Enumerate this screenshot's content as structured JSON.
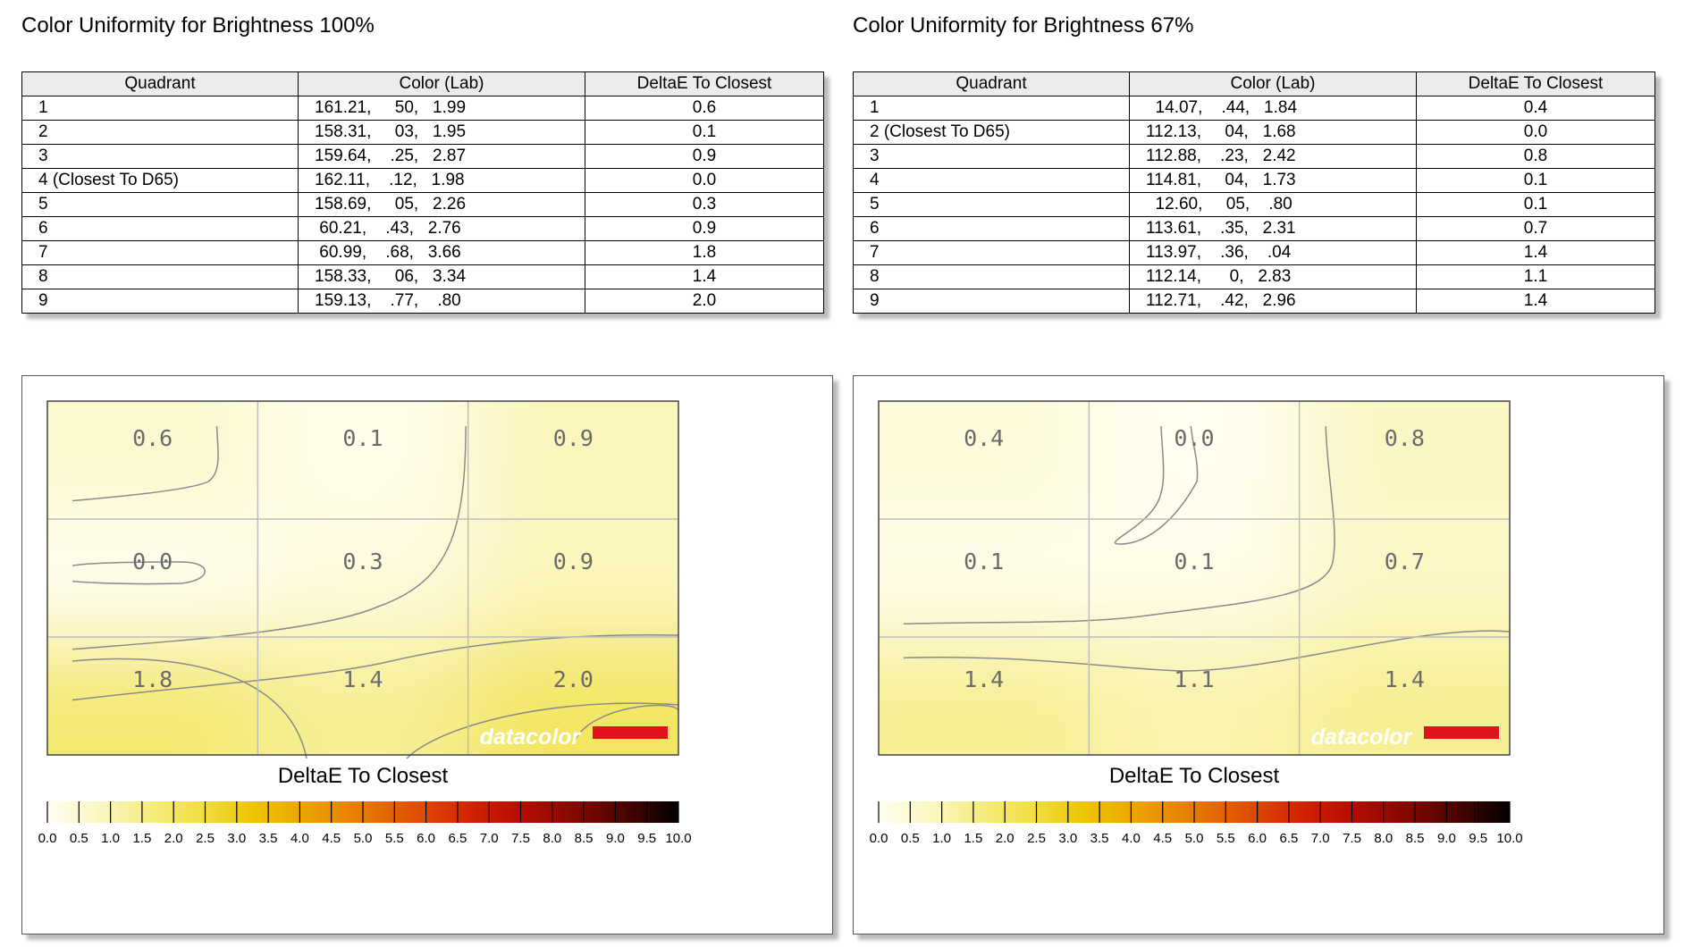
{
  "panels": [
    {
      "title": "Color Uniformity for Brightness 100%",
      "headers": [
        "Quadrant",
        "Color (Lab)",
        "DeltaE To Closest"
      ],
      "rows": [
        [
          "1",
          "161.21,     50,   1.99",
          "0.6"
        ],
        [
          "2",
          "158.31,     03,   1.95",
          "0.1"
        ],
        [
          "3",
          "159.64,    .25,   2.87",
          "0.9"
        ],
        [
          "4 (Closest To D65)",
          "162.11,    .12,   1.98",
          "0.0"
        ],
        [
          "5",
          "158.69,     05,   2.26",
          "0.3"
        ],
        [
          "6",
          " 60.21,    .43,   2.76",
          "0.9"
        ],
        [
          "7",
          " 60.99,    .68,   3.66",
          "1.8"
        ],
        [
          "8",
          "158.33,     06,   3.34",
          "1.4"
        ],
        [
          "9",
          "159.13,    .77,    .80",
          "2.0"
        ]
      ]
    },
    {
      "title": "Color Uniformity for Brightness 67%",
      "headers": [
        "Quadrant",
        "Color (Lab)",
        "DeltaE To Closest"
      ],
      "rows": [
        [
          "1",
          "  14.07,    .44,   1.84",
          "0.4"
        ],
        [
          "2 (Closest To D65)",
          "112.13,     04,   1.68",
          "0.0"
        ],
        [
          "3",
          "112.88,    .23,   2.42",
          "0.8"
        ],
        [
          "4",
          "114.81,     04,   1.73",
          "0.1"
        ],
        [
          "5",
          "  12.60,     05,    .80",
          "0.1"
        ],
        [
          "6",
          "113.61,    .35,   2.31",
          "0.7"
        ],
        [
          "7",
          "113.97,    .36,    .04",
          "1.4"
        ],
        [
          "8",
          "112.14,      0,   2.83",
          "1.1"
        ],
        [
          "9",
          "112.71,    .42,   2.96",
          "1.4"
        ]
      ]
    }
  ],
  "chart_data": [
    {
      "type": "heatmap",
      "title": "Color Uniformity for Brightness 100%",
      "grid_rows": 3,
      "grid_cols": 3,
      "values": [
        [
          0.6,
          0.1,
          0.9
        ],
        [
          0.0,
          0.3,
          0.9
        ],
        [
          1.8,
          1.4,
          2.0
        ]
      ],
      "labels": [
        "0.6",
        "0.1",
        "0.9",
        "0.0",
        "0.3",
        "0.9",
        "1.8",
        "1.4",
        "2.0"
      ],
      "colorbar_title": "DeltaE To Closest",
      "colorbar_range": [
        0.0,
        10.0
      ],
      "colorbar_ticks": [
        "0.0",
        "0.5",
        "1.0",
        "1.5",
        "2.0",
        "2.5",
        "3.0",
        "3.5",
        "4.0",
        "4.5",
        "5.0",
        "5.5",
        "6.0",
        "6.5",
        "7.0",
        "7.5",
        "8.0",
        "8.5",
        "9.0",
        "9.5",
        "10.0"
      ],
      "watermark": "datacolor"
    },
    {
      "type": "heatmap",
      "title": "Color Uniformity for Brightness 67%",
      "grid_rows": 3,
      "grid_cols": 3,
      "values": [
        [
          0.4,
          0.0,
          0.8
        ],
        [
          0.1,
          0.1,
          0.7
        ],
        [
          1.4,
          1.1,
          1.4
        ]
      ],
      "labels": [
        "0.4",
        "0.0",
        "0.8",
        "0.1",
        "0.1",
        "0.7",
        "1.4",
        "1.1",
        "1.4"
      ],
      "colorbar_title": "DeltaE To Closest",
      "colorbar_range": [
        0.0,
        10.0
      ],
      "colorbar_ticks": [
        "0.0",
        "0.5",
        "1.0",
        "1.5",
        "2.0",
        "2.5",
        "3.0",
        "3.5",
        "4.0",
        "4.5",
        "5.0",
        "5.5",
        "6.0",
        "6.5",
        "7.0",
        "7.5",
        "8.0",
        "8.5",
        "9.0",
        "9.5",
        "10.0"
      ],
      "watermark": "datacolor"
    }
  ],
  "colors": {
    "scale": [
      "#fffef0",
      "#fbf7c2",
      "#f5ec7e",
      "#f1dd3c",
      "#eec200",
      "#eba000",
      "#e67a00",
      "#e04e00",
      "#d42300",
      "#b50d00",
      "#850800",
      "#4a0300",
      "#000000"
    ],
    "logo_bar": "#e0141c",
    "grid": "#bdbdbd",
    "contour": "#8a8a8a"
  }
}
